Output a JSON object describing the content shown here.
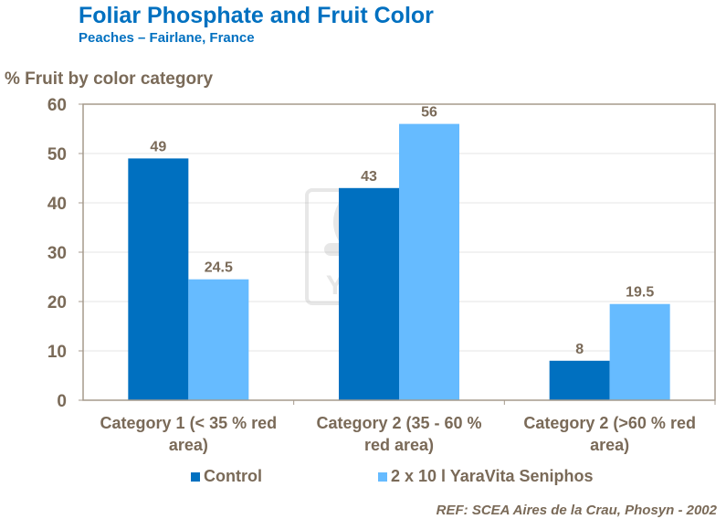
{
  "title": "Foliar Phosphate and Fruit Color",
  "subtitle": "Peaches – Fairlane, France",
  "reference": "REF: SCEA Aires de la Crau,  Phosyn -  2002",
  "watermark": "YARA",
  "chart_data": {
    "type": "bar",
    "ylabel": "% Fruit by color category",
    "ylim": [
      0,
      60
    ],
    "yticks": [
      0,
      10,
      20,
      30,
      40,
      50,
      60
    ],
    "grid": true,
    "legend_position": "bottom",
    "categories": [
      [
        "Category 1 (< 35 % red",
        "area)"
      ],
      [
        "Category 2 (35 - 60 %",
        "red area)"
      ],
      [
        "Category 2 (>60 % red",
        "area)"
      ]
    ],
    "series": [
      {
        "name": "Control",
        "color": "#0070C0",
        "values": [
          49,
          43,
          8
        ]
      },
      {
        "name": "2 x 10 l YaraVita Seniphos",
        "color": "#66BBFF",
        "values": [
          24.5,
          56,
          19.5
        ]
      }
    ]
  }
}
